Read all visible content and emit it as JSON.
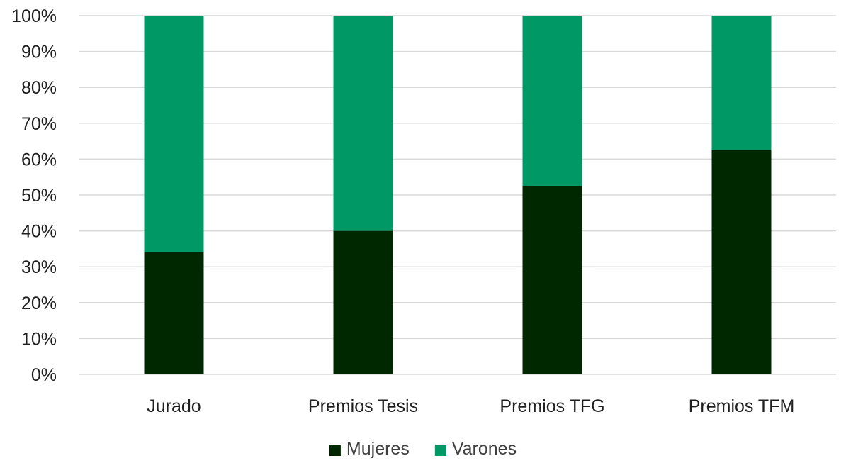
{
  "chart_data": {
    "type": "bar",
    "stacked": true,
    "percent_stacked": true,
    "categories": [
      "Jurado",
      "Premios Tesis",
      "Premios TFG",
      "Premios TFM"
    ],
    "series": [
      {
        "name": "Mujeres",
        "values": [
          34,
          40,
          52.5,
          62.5
        ],
        "color": "#002800"
      },
      {
        "name": "Varones",
        "values": [
          66,
          60,
          47.5,
          37.5
        ],
        "color": "#009966"
      }
    ],
    "y_ticks": [
      "0%",
      "10%",
      "20%",
      "30%",
      "40%",
      "50%",
      "60%",
      "70%",
      "80%",
      "90%",
      "100%"
    ],
    "ylim": [
      0,
      100
    ],
    "grid": true,
    "legend_position": "bottom",
    "title": "",
    "xlabel": "",
    "ylabel": ""
  }
}
